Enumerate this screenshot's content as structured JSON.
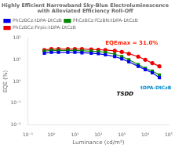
{
  "chart_data": {
    "type": "line",
    "title": [
      "Highly Efficient Narrowband Sky-Blue Electroluminescence",
      "with Alleviated Efficiency Roll-Off"
    ],
    "xlabel": "Luminance (cd/m²)",
    "ylabel": "EQE (%)",
    "x": [
      0.5,
      1,
      2,
      5,
      10,
      20,
      50,
      100,
      200,
      500,
      1000,
      2000,
      5000,
      10000,
      20000,
      40000
    ],
    "series": [
      {
        "name": "PhCzBCz:tDPA-DtCzB",
        "color": "#0000ee",
        "marker": "square",
        "values": [
          20,
          22,
          22,
          22,
          22,
          21,
          20,
          19,
          17,
          14,
          11,
          8,
          5,
          3.5,
          2.5,
          1.5
        ]
      },
      {
        "name": "PhCzBCz:fCzBN:tDPA-DtCzB",
        "color": "#008800",
        "marker": "square",
        "values": [
          25,
          27,
          27,
          27,
          27,
          26,
          25,
          24,
          22,
          18,
          14,
          10,
          6,
          4,
          3,
          2
        ]
      },
      {
        "name": "PhCzBCz:Firpic:tDPA-DtCzB",
        "color": "#ee0000",
        "marker": "circle",
        "values": [
          28,
          31,
          31,
          31,
          31,
          31,
          30,
          29,
          28,
          26,
          23,
          19,
          14,
          10,
          7,
          5
        ]
      }
    ],
    "log": true,
    "xlim": [
      0.1,
      100000
    ],
    "ylim": [
      0.01,
      100
    ],
    "xticks": [
      {
        "value": 0.1,
        "label": "10⁻¹"
      },
      {
        "value": 1,
        "label": "10⁰"
      },
      {
        "value": 10,
        "label": "10¹"
      },
      {
        "value": 100,
        "label": "10²"
      },
      {
        "value": 1000,
        "label": "10³"
      },
      {
        "value": 10000,
        "label": "10⁴"
      },
      {
        "value": 100000,
        "label": "10⁵"
      }
    ],
    "yticks": [
      {
        "value": 0.01,
        "label": "10⁻²"
      },
      {
        "value": 0.1,
        "label": "10⁻¹"
      },
      {
        "value": 1,
        "label": "10⁰"
      },
      {
        "value": 10,
        "label": "10¹"
      },
      {
        "value": 100,
        "label": "10²"
      }
    ],
    "grid": false,
    "legend": "upper left",
    "annotations": [
      "EQEmax = 31.0%",
      "TSDD",
      "tDPA-DtCzB"
    ]
  }
}
